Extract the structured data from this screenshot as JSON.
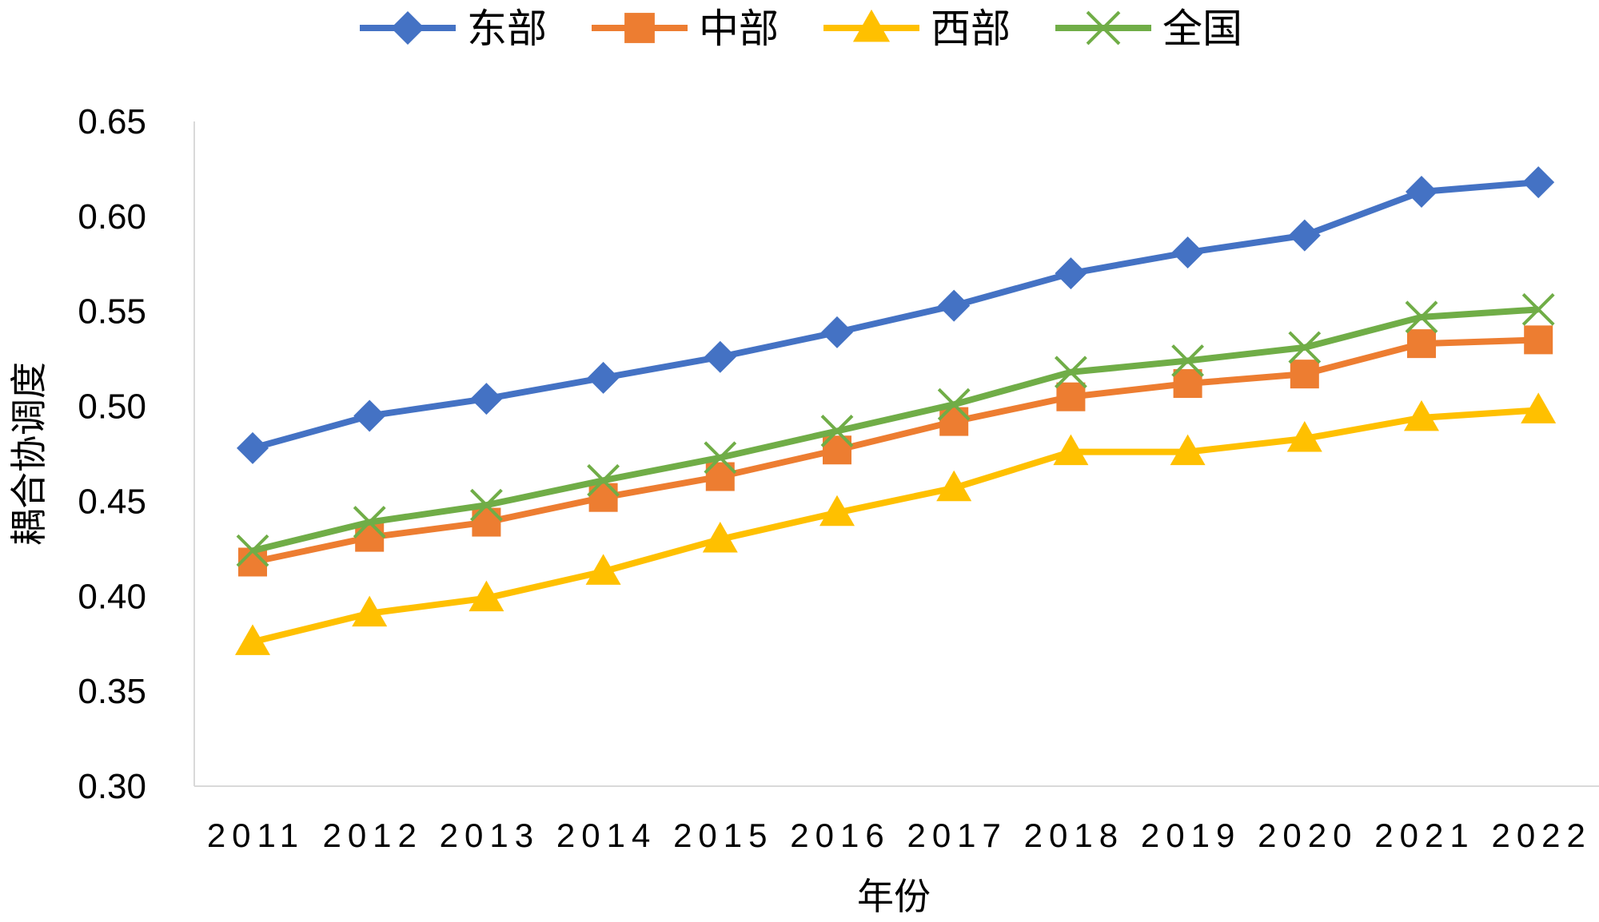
{
  "chart_data": {
    "type": "line",
    "title": "",
    "xlabel": "年份",
    "ylabel": "耦合协调度",
    "ylim": [
      0.3,
      0.65
    ],
    "yticks": [
      "0.30",
      "0.35",
      "0.40",
      "0.45",
      "0.50",
      "0.55",
      "0.60",
      "0.65"
    ],
    "ytick_values": [
      0.3,
      0.35,
      0.4,
      0.45,
      0.5,
      0.55,
      0.6,
      0.65
    ],
    "categories": [
      "2011",
      "2012",
      "2013",
      "2014",
      "2015",
      "2016",
      "2017",
      "2018",
      "2019",
      "2020",
      "2021",
      "2022"
    ],
    "grid": false,
    "legend_position": "top",
    "series": [
      {
        "name": "东部",
        "color": "#4472c4",
        "marker": "diamond",
        "values": [
          0.478,
          0.495,
          0.504,
          0.515,
          0.526,
          0.539,
          0.553,
          0.57,
          0.581,
          0.59,
          0.613,
          0.618
        ]
      },
      {
        "name": "中部",
        "color": "#ed7d31",
        "marker": "square",
        "values": [
          0.418,
          0.431,
          0.439,
          0.452,
          0.463,
          0.477,
          0.492,
          0.505,
          0.512,
          0.517,
          0.533,
          0.535
        ]
      },
      {
        "name": "西部",
        "color": "#ffc000",
        "marker": "triangle",
        "values": [
          0.376,
          0.391,
          0.399,
          0.413,
          0.43,
          0.444,
          0.457,
          0.476,
          0.476,
          0.483,
          0.494,
          0.498
        ]
      },
      {
        "name": "全国",
        "color": "#70ad47",
        "marker": "x",
        "values": [
          0.424,
          0.439,
          0.448,
          0.461,
          0.473,
          0.487,
          0.501,
          0.518,
          0.524,
          0.531,
          0.547,
          0.551
        ]
      }
    ]
  }
}
